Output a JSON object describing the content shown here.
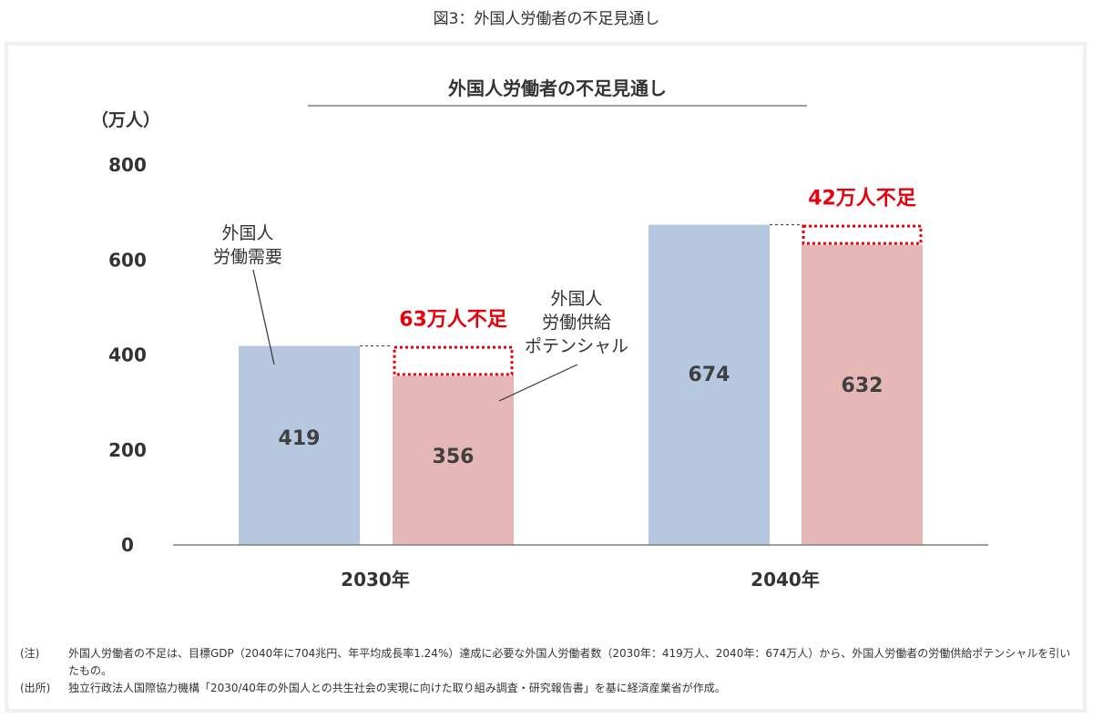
{
  "page_caption": "図3：外国人労働者の不足見通し",
  "chart_data": {
    "type": "bar",
    "title": "外国人労働者の不足見通し",
    "unit_label": "（万人）",
    "ylim": [
      0,
      800
    ],
    "yticks": [
      0,
      200,
      400,
      600,
      800
    ],
    "categories": [
      "2030年",
      "2040年"
    ],
    "series": [
      {
        "name": "外国人\n労働需要",
        "values": [
          419,
          674
        ],
        "color": "#b5c8e0"
      },
      {
        "name": "外国人\n労働供給\nポテンシャル",
        "values": [
          356,
          632
        ],
        "color": "#e6b7b7"
      }
    ],
    "shortfall_labels": [
      "63万人不足",
      "42万人不足"
    ],
    "shortfall_color": "#e8000b"
  },
  "notes": [
    {
      "key": "(注)",
      "text": "外国人労働者の不足は、目標GDP（2040年に704兆円、年平均成長率1.24%）達成に必要な外国人労働者数（2030年：419万人、2040年：674万人）から、外国人労働者の労働供給ポテンシャルを引いたもの。"
    },
    {
      "key": "(出所)",
      "text": "独立行政法人国際協力機構「2030/40年の外国人との共生社会の実現に向けた取り組み調査・研究報告書」を基に経済産業省が作成。"
    }
  ]
}
